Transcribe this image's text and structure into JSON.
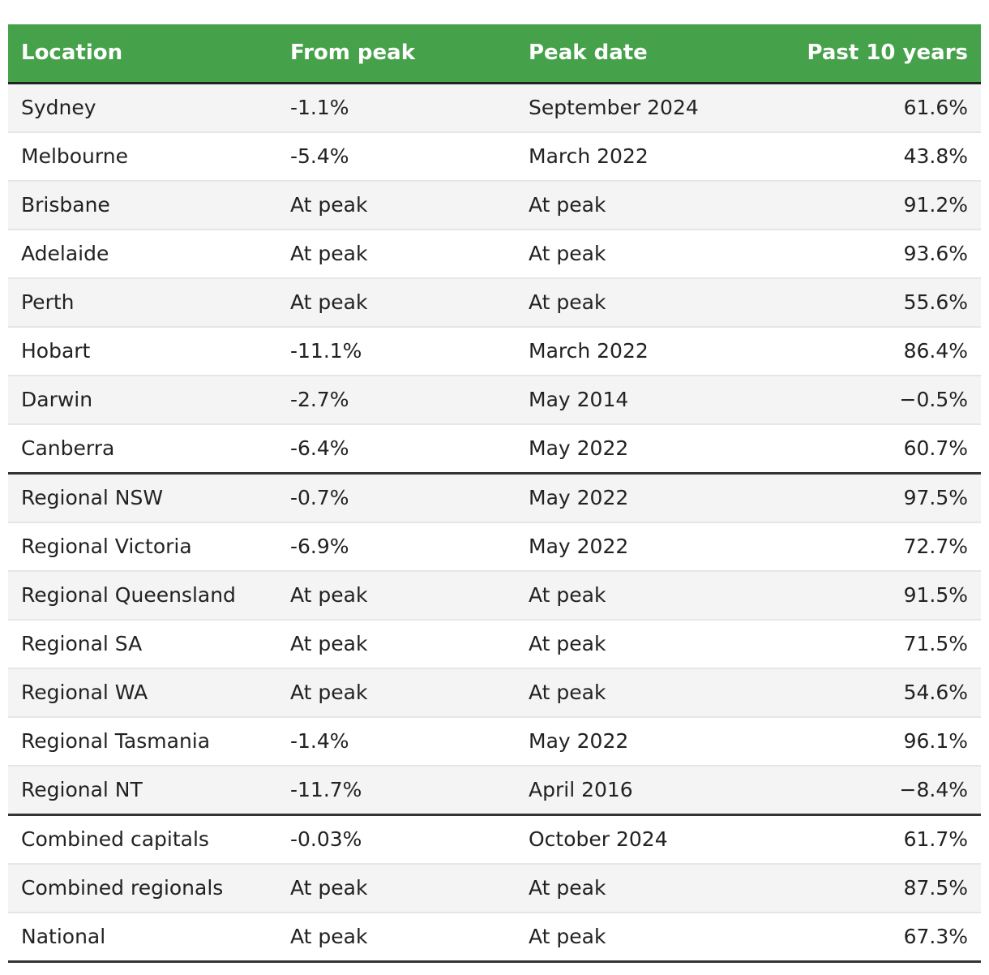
{
  "table": {
    "columns": [
      "Location",
      "From peak",
      "Peak date",
      "Past 10 years"
    ],
    "groups": [
      {
        "rows": [
          {
            "location": "Sydney",
            "from_peak": "-1.1%",
            "peak_date": "September 2024",
            "past_10_years": "61.6%"
          },
          {
            "location": "Melbourne",
            "from_peak": "-5.4%",
            "peak_date": "March 2022",
            "past_10_years": "43.8%"
          },
          {
            "location": "Brisbane",
            "from_peak": "At peak",
            "peak_date": "At peak",
            "past_10_years": "91.2%"
          },
          {
            "location": "Adelaide",
            "from_peak": "At peak",
            "peak_date": "At peak",
            "past_10_years": "93.6%"
          },
          {
            "location": "Perth",
            "from_peak": "At peak",
            "peak_date": "At peak",
            "past_10_years": "55.6%"
          },
          {
            "location": "Hobart",
            "from_peak": "-11.1%",
            "peak_date": "March 2022",
            "past_10_years": "86.4%"
          },
          {
            "location": "Darwin",
            "from_peak": "-2.7%",
            "peak_date": "May 2014",
            "past_10_years": "−0.5%"
          },
          {
            "location": "Canberra",
            "from_peak": "-6.4%",
            "peak_date": "May 2022",
            "past_10_years": "60.7%"
          }
        ]
      },
      {
        "rows": [
          {
            "location": "Regional NSW",
            "from_peak": "-0.7%",
            "peak_date": "May 2022",
            "past_10_years": "97.5%"
          },
          {
            "location": "Regional Victoria",
            "from_peak": "-6.9%",
            "peak_date": "May 2022",
            "past_10_years": "72.7%"
          },
          {
            "location": "Regional Queensland",
            "from_peak": "At peak",
            "peak_date": "At peak",
            "past_10_years": "91.5%"
          },
          {
            "location": "Regional SA",
            "from_peak": "At peak",
            "peak_date": "At peak",
            "past_10_years": "71.5%"
          },
          {
            "location": "Regional WA",
            "from_peak": "At peak",
            "peak_date": "At peak",
            "past_10_years": "54.6%"
          },
          {
            "location": "Regional Tasmania",
            "from_peak": "-1.4%",
            "peak_date": "May 2022",
            "past_10_years": "96.1%"
          },
          {
            "location": "Regional NT",
            "from_peak": "-11.7%",
            "peak_date": "April 2016",
            "past_10_years": "−8.4%"
          }
        ]
      },
      {
        "rows": [
          {
            "location": "Combined capitals",
            "from_peak": "-0.03%",
            "peak_date": "October 2024",
            "past_10_years": "61.7%"
          },
          {
            "location": "Combined regionals",
            "from_peak": "At peak",
            "peak_date": "At peak",
            "past_10_years": "87.5%"
          },
          {
            "location": "National",
            "from_peak": "At peak",
            "peak_date": "At peak",
            "past_10_years": "67.3%"
          }
        ]
      }
    ]
  },
  "colors": {
    "header_background": "#46a24a",
    "header_text": "#ffffff",
    "row_stripe": "#f4f4f4",
    "group_divider": "#333333"
  }
}
